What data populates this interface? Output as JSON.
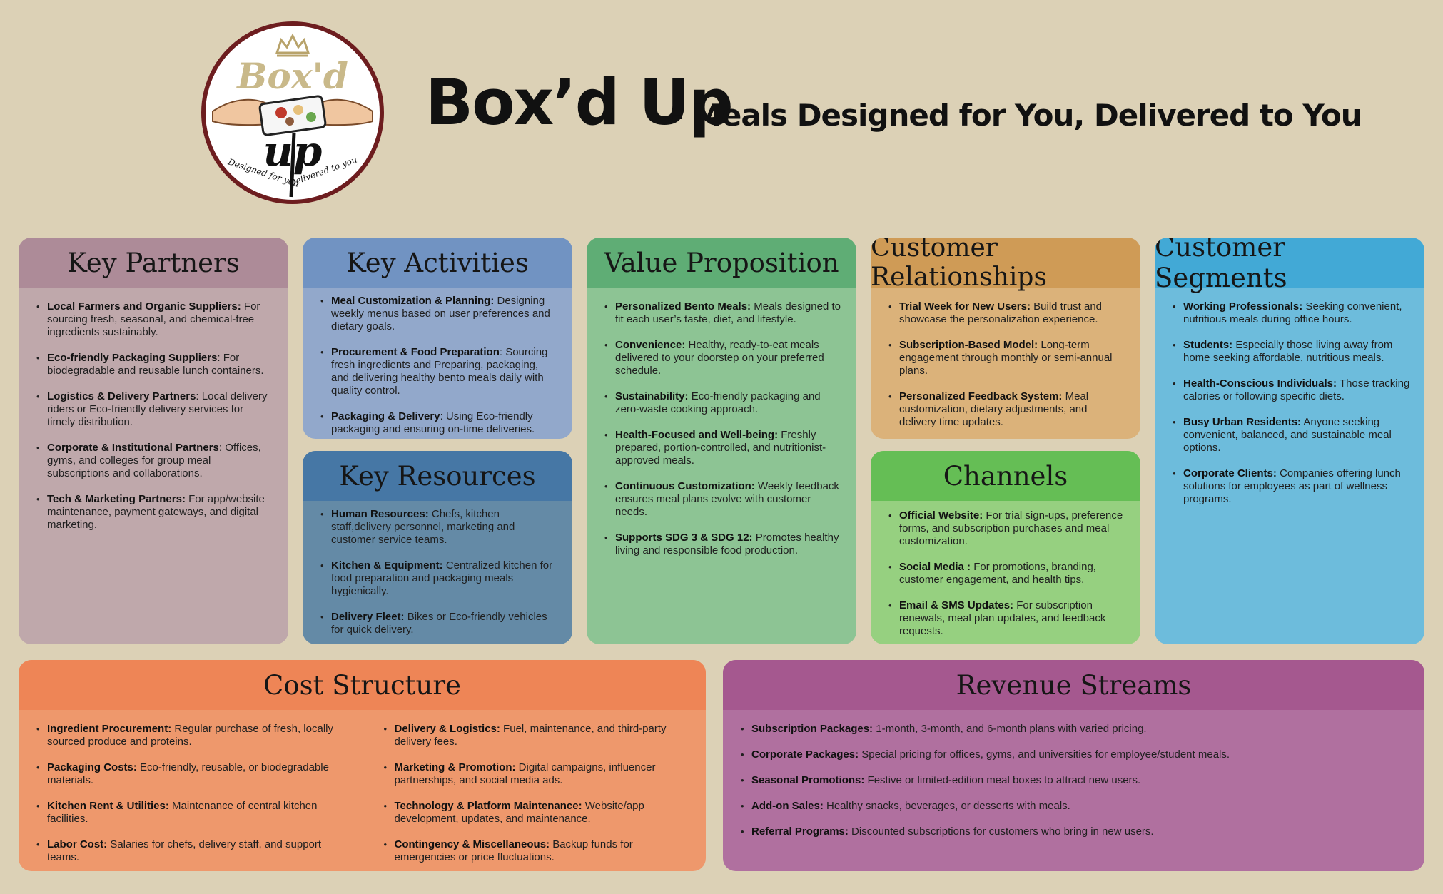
{
  "header": {
    "logo": {
      "icon": "boxd-up-logo",
      "text_top": "Box'd",
      "text_bottom": "up",
      "tagline_left": "Designed for you",
      "tagline_right": "Delivered to you"
    },
    "title": "Box’d Up",
    "subtitle": "- Meals Designed for You, Delivered to You"
  },
  "colors": {
    "background": "#dcd1b6",
    "key_partners": "#ad8b98",
    "key_activities": "#7193c2",
    "key_resources": "#4677a5",
    "value_proposition": "#5fad75",
    "customer_relationships": "#cf9b56",
    "channels": "#65be55",
    "customer_segments": "#42a9d6",
    "cost_structure": "#ee8556",
    "revenue_streams": "#a5588f"
  },
  "key_partners": {
    "title": "Key Partners",
    "items": [
      {
        "label": "Local Farmers and Organic Suppliers:",
        "text": " For sourcing fresh, seasonal, and chemical-free ingredients sustainably."
      },
      {
        "label": "Eco-friendly Packaging Suppliers",
        "text": ":  For biodegradable and reusable lunch containers."
      },
      {
        "label": "Logistics & Delivery Partners",
        "text": ":  Local delivery riders or Eco-friendly delivery services for timely distribution."
      },
      {
        "label": "Corporate & Institutional Partners",
        "text": ": Offices, gyms, and colleges for group meal subscriptions and collaborations."
      },
      {
        "label": "Tech & Marketing Partners:",
        "text": " For app/website maintenance, payment gateways, and digital marketing."
      }
    ]
  },
  "key_activities": {
    "title": "Key Activities",
    "items": [
      {
        "label": "Meal Customization & Planning:",
        "text": " Designing weekly menus based on user preferences and dietary goals."
      },
      {
        "label": "Procurement & Food Preparation",
        "text": ": Sourcing fresh ingredients and Preparing, packaging, and delivering healthy bento meals daily with quality control."
      },
      {
        "label": "Packaging & Delivery",
        "text": ": Using Eco-friendly packaging and ensuring on-time deliveries."
      }
    ]
  },
  "key_resources": {
    "title": "Key Resources",
    "items": [
      {
        "label": "Human Resources:",
        "text": " Chefs, kitchen staff,delivery personnel, marketing and customer service teams."
      },
      {
        "label": "Kitchen & Equipment:",
        "text": " Centralized kitchen for food preparation and packaging meals hygienically."
      },
      {
        "label": "Delivery Fleet:",
        "text": " Bikes or Eco-friendly vehicles for quick delivery."
      }
    ]
  },
  "value_proposition": {
    "title": "Value Proposition",
    "items": [
      {
        "label": "Personalized Bento Meals:",
        "text": " Meals designed to fit each user’s taste, diet, and lifestyle."
      },
      {
        "label": "Convenience:",
        "text": " Healthy, ready-to-eat meals delivered to your doorstep on your preferred schedule."
      },
      {
        "label": "Sustainability:",
        "text": " Eco-friendly packaging and zero-waste cooking approach."
      },
      {
        "label": "Health-Focused and Well-being:",
        "text": " Freshly prepared, portion-controlled, and nutritionist-approved meals."
      },
      {
        "label": "Continuous Customization:",
        "text": " Weekly feedback ensures meal plans evolve with customer needs."
      },
      {
        "label": "Supports SDG 3 & SDG 12:",
        "text": " Promotes healthy living and responsible food production."
      }
    ]
  },
  "customer_relationships": {
    "title": "Customer Relationships",
    "items": [
      {
        "label": "Trial Week for New Users:",
        "text": " Build trust and showcase the personalization experience."
      },
      {
        "label": "Subscription-Based Model:",
        "text": "  Long-term engagement through monthly or semi-annual plans."
      },
      {
        "label": "Personalized Feedback System:",
        "text": " Meal customization, dietary adjustments, and delivery time updates."
      }
    ]
  },
  "channels": {
    "title": "Channels",
    "items": [
      {
        "label": "Official Website:",
        "text": " For trial sign-ups, preference forms, and subscription purchases and meal customization."
      },
      {
        "label": "Social Media :",
        "text": " For promotions, branding, customer engagement, and health tips."
      },
      {
        "label": "Email & SMS Updates:",
        "text": " For subscription renewals, meal plan updates, and feedback requests."
      }
    ]
  },
  "customer_segments": {
    "title": "Customer Segments",
    "items": [
      {
        "label": "Working Professionals:",
        "text": " Seeking convenient, nutritious meals during office hours."
      },
      {
        "label": "Students:",
        "text": " Especially those living away from home seeking affordable, nutritious meals."
      },
      {
        "label": "Health-Conscious Individuals:",
        "text": " Those tracking calories or following specific diets."
      },
      {
        "label": "Busy Urban Residents:",
        "text": " Anyone seeking convenient, balanced, and sustainable meal options."
      },
      {
        "label": "Corporate Clients:",
        "text": " Companies offering lunch solutions for employees as part of wellness programs."
      }
    ]
  },
  "cost_structure": {
    "title": "Cost Structure",
    "left": [
      {
        "label": "Ingredient Procurement:",
        "text": " Regular purchase of fresh, locally sourced produce and proteins."
      },
      {
        "label": "Packaging Costs:",
        "text": " Eco-friendly, reusable, or biodegradable materials."
      },
      {
        "label": "Kitchen Rent & Utilities:",
        "text": " Maintenance of central kitchen facilities."
      },
      {
        "label": "Labor Cost:",
        "text": " Salaries for chefs, delivery staff, and support teams."
      }
    ],
    "right": [
      {
        "label": "Delivery & Logistics:",
        "text": " Fuel, maintenance, and third-party delivery fees."
      },
      {
        "label": "Marketing & Promotion:",
        "text": " Digital campaigns, influencer partnerships, and social media ads."
      },
      {
        "label": "Technology & Platform Maintenance:",
        "text": " Website/app development, updates, and maintenance."
      },
      {
        "label": "Contingency & Miscellaneous:",
        "text": " Backup funds for emergencies or price fluctuations."
      }
    ]
  },
  "revenue_streams": {
    "title": "Revenue Streams",
    "items": [
      {
        "label": "Subscription Packages:",
        "text": " 1-month, 3-month, and 6-month plans with varied pricing."
      },
      {
        "label": "Corporate Packages:",
        "text": " Special pricing for offices, gyms, and universities for employee/student meals."
      },
      {
        "label": "Seasonal Promotions:",
        "text": " Festive or limited-edition meal boxes to attract new users."
      },
      {
        "label": "Add-on Sales:",
        "text": " Healthy snacks, beverages, or desserts with meals."
      },
      {
        "label": "Referral Programs:",
        "text": " Discounted subscriptions for customers who bring in new users."
      }
    ]
  }
}
